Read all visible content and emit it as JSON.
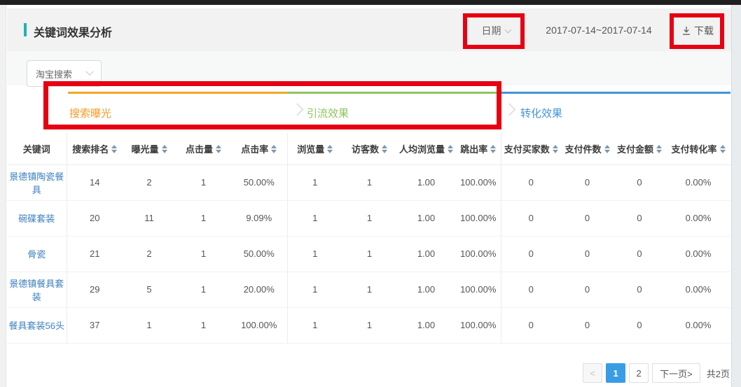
{
  "header": {
    "title": "关键词效果分析",
    "accent_color": "#1bb7b0",
    "date_dropdown_label": "日期",
    "date_range": "2017-07-14~2017-07-14",
    "download_label": "下载"
  },
  "toolbar": {
    "channel_dropdown_value": "淘宝搜索"
  },
  "tabs": [
    {
      "label": "搜索曝光",
      "color": "#f59a23"
    },
    {
      "label": "引流效果",
      "color": "#8fc45f"
    },
    {
      "label": "转化效果",
      "color": "#4095d9"
    }
  ],
  "annotations": {
    "highlight_color": "#e60012"
  },
  "table": {
    "headers": [
      "关键词",
      "搜索排名",
      "曝光量",
      "点击量",
      "点击率",
      "浏览量",
      "访客数",
      "人均浏览量",
      "跳出率",
      "支付买家数",
      "支付件数",
      "支付金额",
      "支付转化率"
    ],
    "rows": [
      [
        "景德镇陶瓷餐具",
        "14",
        "2",
        "1",
        "50.00%",
        "1",
        "1",
        "1.00",
        "100.00%",
        "0",
        "0",
        "0",
        "0.00%"
      ],
      [
        "碗碟套装",
        "20",
        "11",
        "1",
        "9.09%",
        "1",
        "1",
        "1.00",
        "100.00%",
        "0",
        "0",
        "0",
        "0.00%"
      ],
      [
        "骨瓷",
        "21",
        "2",
        "1",
        "50.00%",
        "1",
        "1",
        "1.00",
        "100.00%",
        "0",
        "0",
        "0",
        "0.00%"
      ],
      [
        "景德镇餐具套装",
        "29",
        "5",
        "1",
        "20.00%",
        "1",
        "1",
        "1.00",
        "100.00%",
        "0",
        "0",
        "0",
        "0.00%"
      ],
      [
        "餐具套装56头",
        "37",
        "1",
        "1",
        "100.00%",
        "1",
        "1",
        "1.00",
        "100.00%",
        "0",
        "0",
        "0",
        "0.00%"
      ]
    ]
  },
  "pagination": {
    "prev_label": "<",
    "page_1": "1",
    "page_2": "2",
    "active_page": "1",
    "next_label": "下一页>",
    "total_label": "共2页",
    "active_color": "#3a9de4"
  }
}
